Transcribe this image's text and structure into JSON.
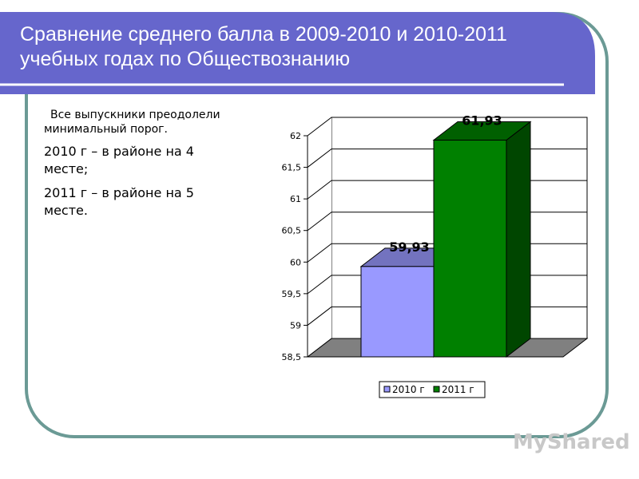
{
  "header": {
    "title": "Сравнение среднего балла в 2009-2010 и 2010-2011 учебных годах по Обществознанию"
  },
  "notes": [
    "Все выпускники преодолели минимальный порог.",
    "2010 г – в районе на 4 месте;",
    "2011 г – в районе на 5 месте."
  ],
  "watermark": "MyShared",
  "chart_data": {
    "type": "bar",
    "series": [
      {
        "name": "2010 г",
        "color": "#9999ff",
        "values": [
          59.93
        ],
        "value_labels": [
          "59,93"
        ]
      },
      {
        "name": "2011 г",
        "color": "#008000",
        "values": [
          61.93
        ],
        "value_labels": [
          "61,93"
        ]
      }
    ],
    "ylim": [
      58.5,
      62
    ],
    "yticks": [
      {
        "value": 58.5,
        "label": "58,5"
      },
      59,
      {
        "value": 59.5,
        "label": "59,5"
      },
      60,
      {
        "value": 60.5,
        "label": "60,5"
      },
      61,
      {
        "value": 61.5,
        "label": "61,5"
      },
      62
    ],
    "grid": true,
    "legend": "bottom"
  }
}
